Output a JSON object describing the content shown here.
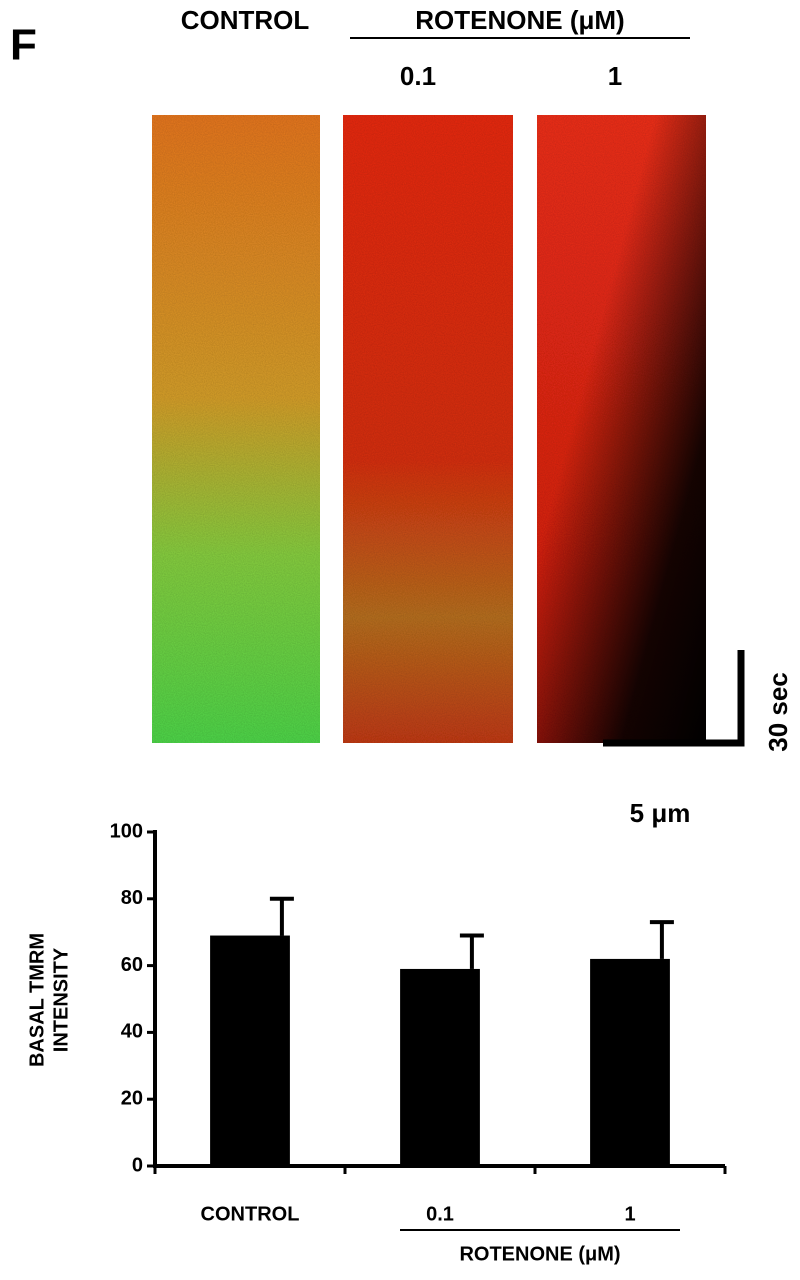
{
  "panel_label": "F",
  "images": {
    "control_label": "CONTROL",
    "group_label": "ROTENONE (μM)",
    "doses": [
      "0.1",
      "1"
    ],
    "time_scale": "30 sec",
    "length_scale": "5 μm"
  },
  "chart_data": {
    "type": "bar",
    "ylabel": [
      "BASAL TMRM",
      "INTENSITY"
    ],
    "categories": [
      "CONTROL",
      "0.1",
      "1"
    ],
    "group_label": "ROTENONE (μM)",
    "values": [
      69,
      59,
      62
    ],
    "errors": [
      11,
      10,
      11
    ],
    "color": "#000000",
    "ylim": [
      0,
      100
    ],
    "yticks": [
      0,
      20,
      40,
      60,
      80,
      100
    ]
  }
}
